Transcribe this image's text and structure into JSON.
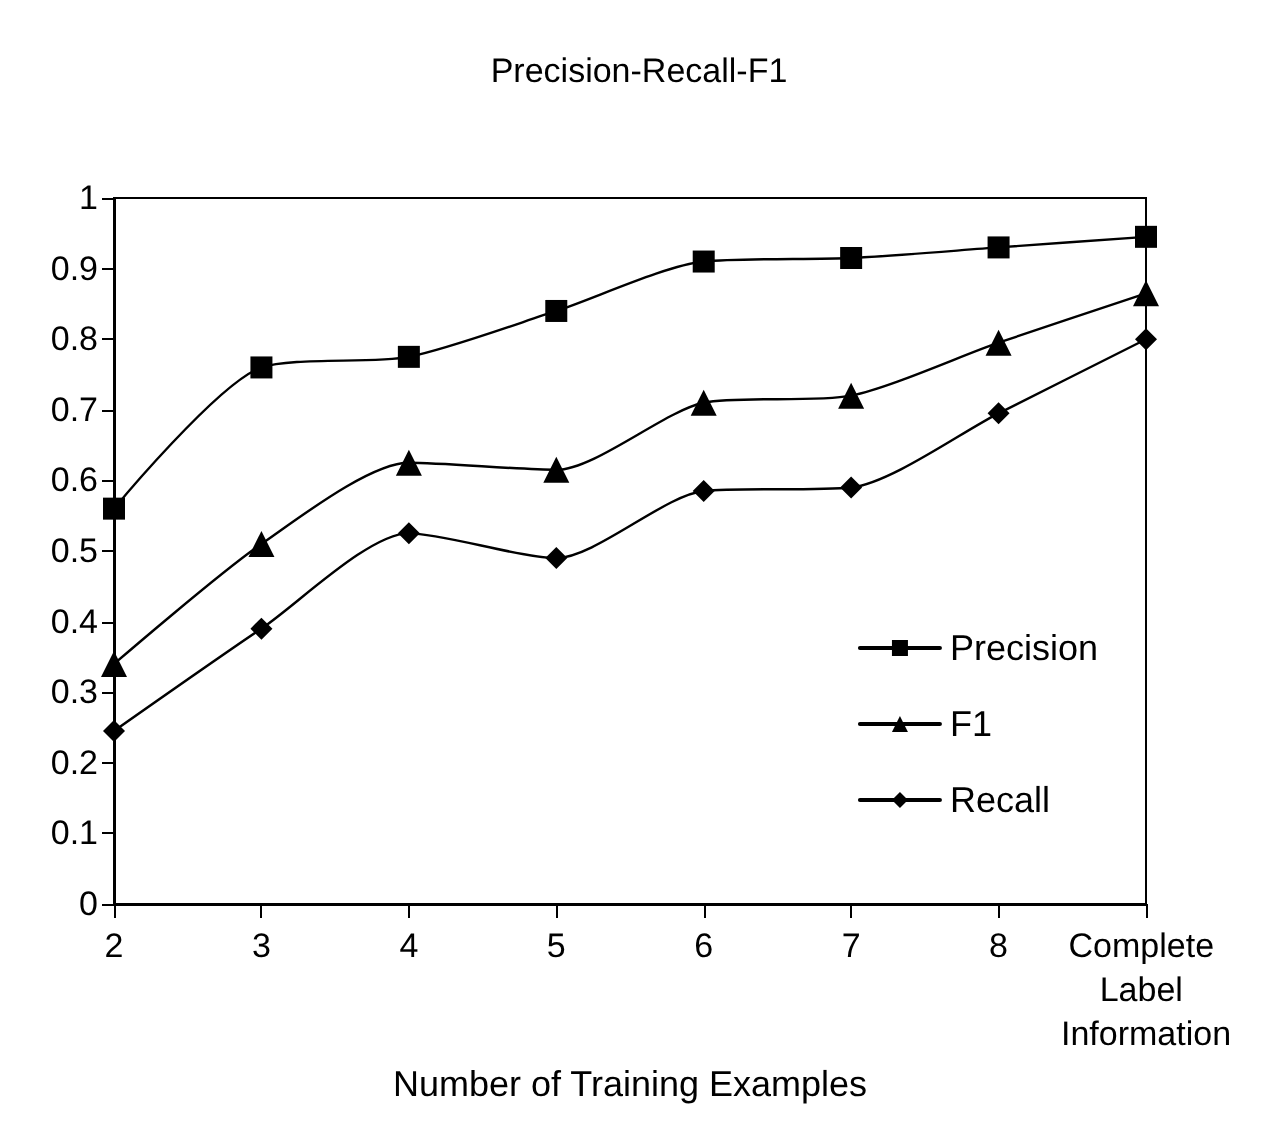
{
  "chart_data": {
    "type": "line",
    "title": "Precision-Recall-F1",
    "xlabel": "Number of Training Examples",
    "categories": [
      "2",
      "3",
      "4",
      "5",
      "6",
      "7",
      "8",
      "Complete Label Information"
    ],
    "series": [
      {
        "name": "Precision",
        "color": "#000000",
        "marker": "square",
        "values": [
          0.56,
          0.76,
          0.775,
          0.84,
          0.91,
          0.915,
          0.93,
          0.945
        ]
      },
      {
        "name": "F1",
        "color": "#000000",
        "marker": "triangle",
        "values": [
          0.34,
          0.51,
          0.625,
          0.615,
          0.71,
          0.72,
          0.795,
          0.865
        ]
      },
      {
        "name": "Recall",
        "color": "#000000",
        "marker": "diamond",
        "values": [
          0.245,
          0.39,
          0.525,
          0.49,
          0.585,
          0.59,
          0.695,
          0.8
        ]
      }
    ],
    "ylim": [
      0,
      1
    ],
    "yticks": [
      0,
      0.1,
      0.2,
      0.3,
      0.4,
      0.5,
      0.6,
      0.7,
      0.8,
      0.9,
      1
    ],
    "grid": false,
    "legend": "bottom right",
    "line_style": "solid"
  }
}
